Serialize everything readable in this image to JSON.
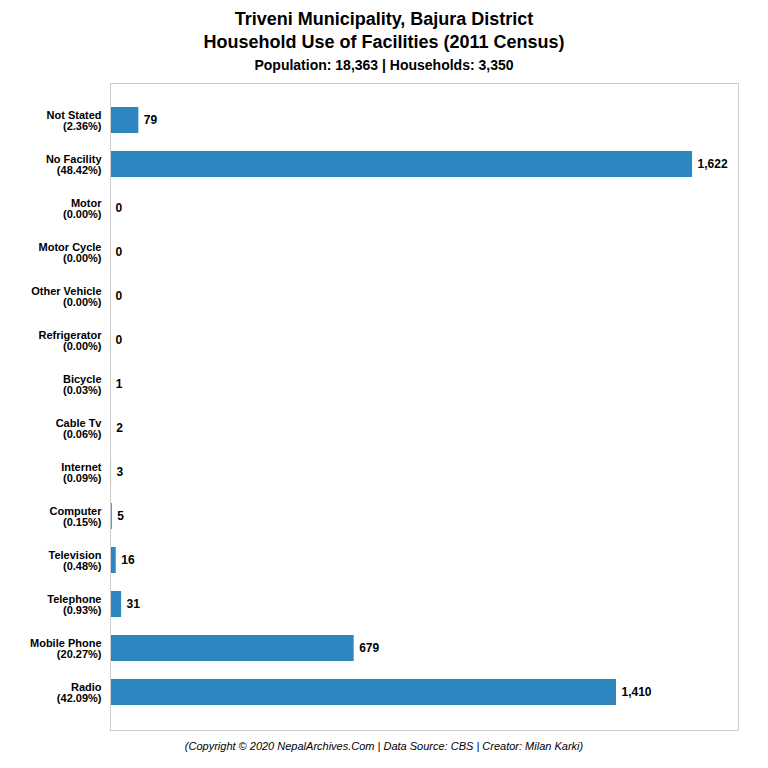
{
  "chart_data": {
    "type": "bar",
    "orientation": "horizontal",
    "title": "Triveni Municipality, Bajura District\nHousehold Use of Facilities (2011 Census)",
    "subtitle": "Population: 18,363 | Households: 3,350",
    "caption": "(Copyright © 2020 NepalArchives.Com | Data Source: CBS | Creator: Milan Karki)",
    "categories": [
      "Not Stated\n(2.36%)",
      "No Facility\n(48.42%)",
      "Motor\n(0.00%)",
      "Motor Cycle\n(0.00%)",
      "Other Vehicle\n(0.00%)",
      "Refrigerator\n(0.00%)",
      "Bicycle\n(0.03%)",
      "Cable Tv\n(0.06%)",
      "Internet\n(0.09%)",
      "Computer\n(0.15%)",
      "Television\n(0.48%)",
      "Telephone\n(0.93%)",
      "Mobile Phone\n(20.27%)",
      "Radio\n(42.09%)"
    ],
    "values": [
      79,
      1622,
      0,
      0,
      0,
      0,
      1,
      2,
      3,
      5,
      16,
      31,
      679,
      1410
    ],
    "value_labels": [
      "79",
      "1,622",
      "0",
      "0",
      "0",
      "0",
      "1",
      "2",
      "3",
      "5",
      "16",
      "31",
      "679",
      "1,410"
    ],
    "data_labels": true,
    "color": "#2e86c1",
    "xlim": [
      0,
      1750
    ],
    "tick_labels": "y",
    "grid": false
  }
}
